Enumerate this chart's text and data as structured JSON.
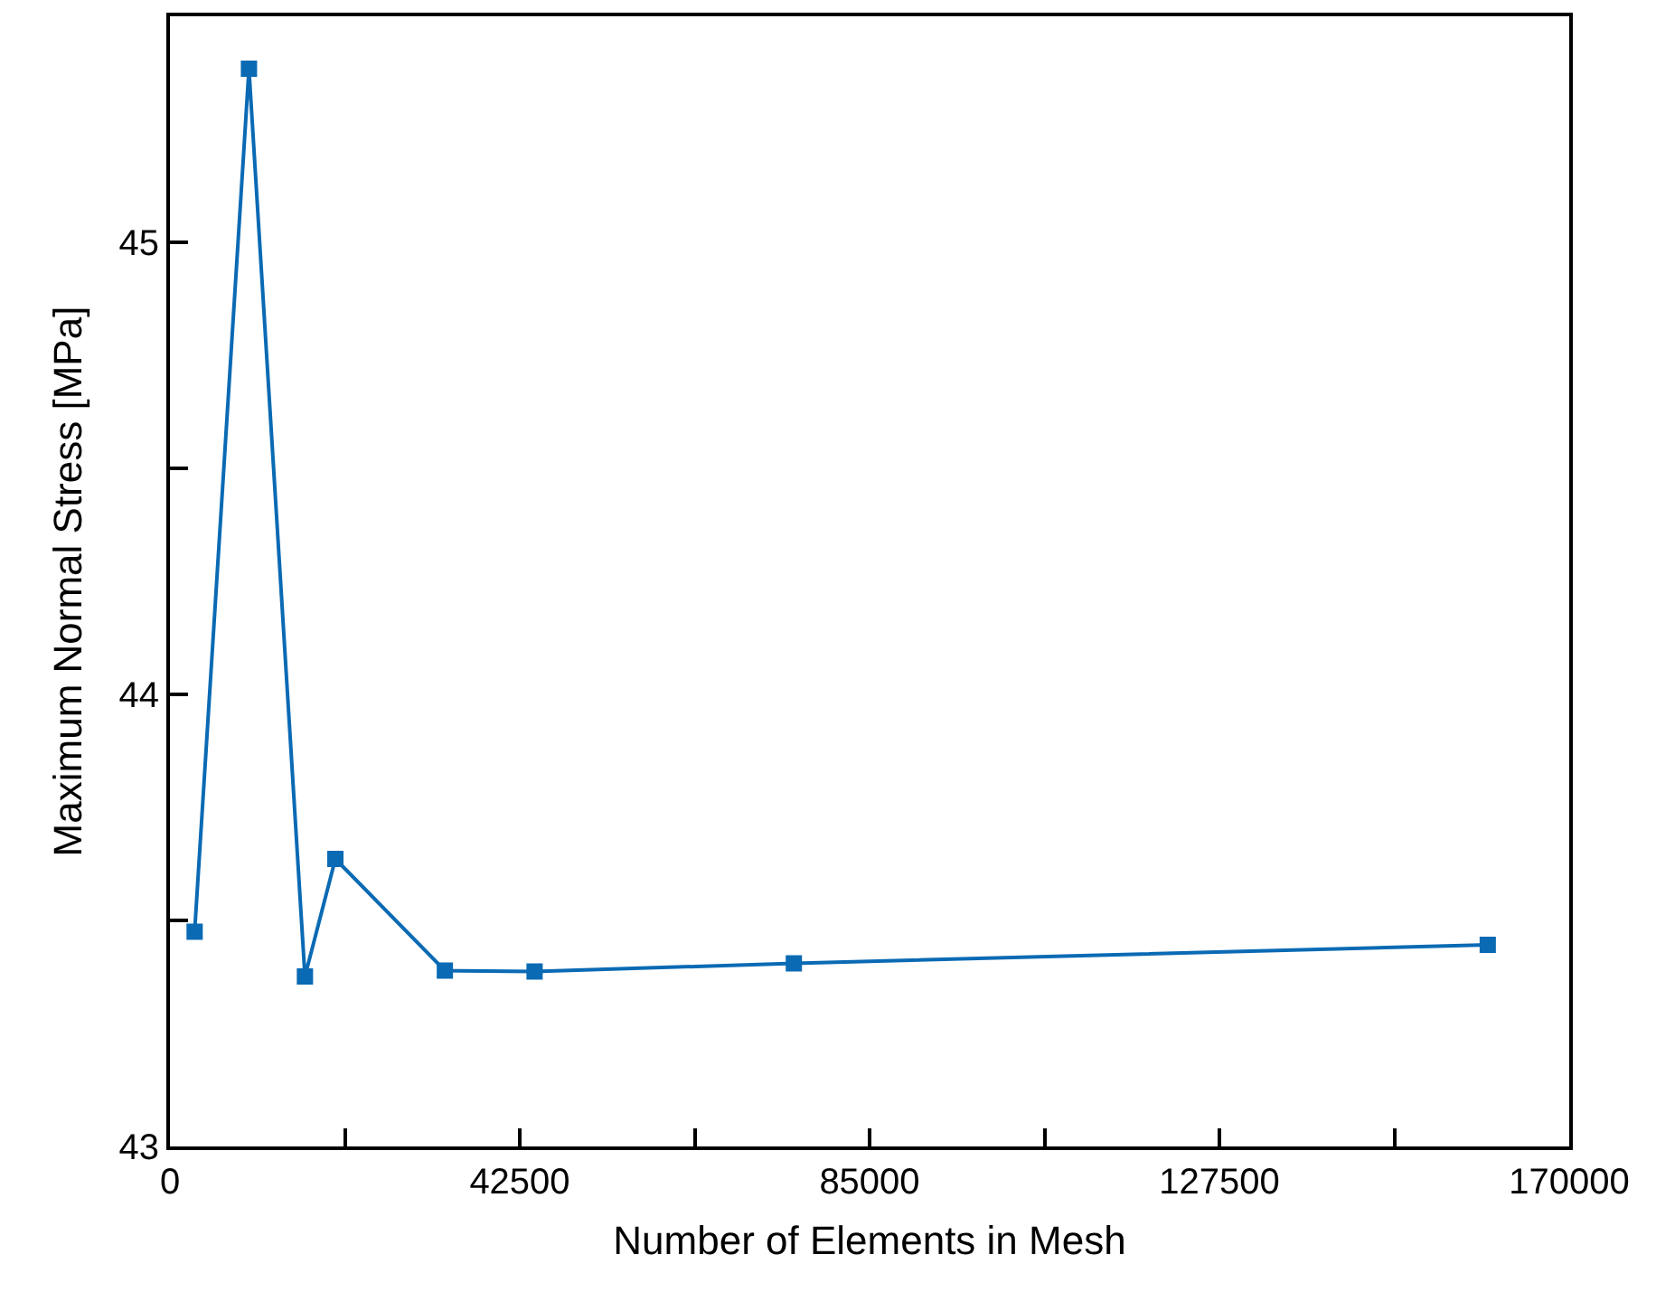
{
  "chart_data": {
    "type": "line",
    "xlabel": "Number of Elements in Mesh",
    "ylabel": "Maximum Normal Stress [MPa]",
    "x": [
      3000,
      9600,
      16400,
      20100,
      33400,
      44300,
      75800,
      160100
    ],
    "series": [
      {
        "color": "#0a6ab4",
        "values": [
          43.475,
          45.384,
          43.376,
          43.636,
          43.389,
          43.387,
          43.405,
          43.446
        ]
      }
    ],
    "xlim": [
      0,
      170000
    ],
    "xticks": [
      0,
      {
        "value": 21250,
        "label": null
      },
      42500,
      {
        "value": 63750,
        "label": null
      },
      85000,
      {
        "value": 106250,
        "label": null
      },
      127500,
      {
        "value": 148750,
        "label": null
      },
      170000
    ],
    "ylim": [
      43,
      45.5
    ],
    "yticks": [
      43,
      {
        "value": 43.5,
        "label": null
      },
      44,
      {
        "value": 44.5,
        "label": null
      },
      45
    ],
    "grid": false,
    "marker": "square",
    "line_style": "solid"
  }
}
